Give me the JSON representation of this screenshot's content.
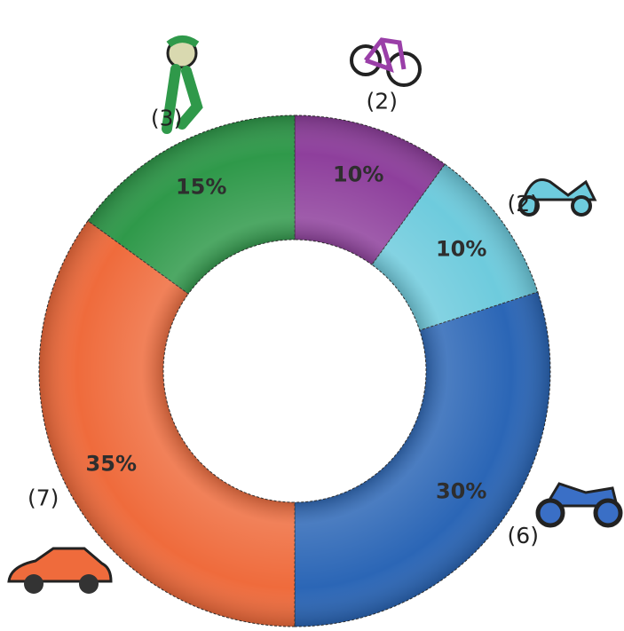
{
  "chart_data": {
    "type": "donut",
    "values": [
      10,
      10,
      30,
      35,
      15
    ],
    "value_labels": [
      "10%",
      "10%",
      "30%",
      "35%",
      "15%"
    ],
    "annotations": [
      "(2)",
      "(2)",
      "(6)",
      "(7)",
      "(3)"
    ],
    "colors": [
      "#8e3f9c",
      "#6ecbdd",
      "#2b66b6",
      "#ef6b3c",
      "#2f994a"
    ]
  }
}
